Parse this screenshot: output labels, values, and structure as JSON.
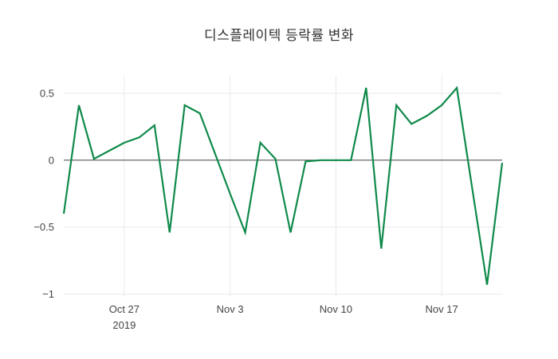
{
  "title": "디스플레이텍 등락률 변화",
  "chart_data": {
    "type": "line",
    "title": "디스플레이텍 등락률 변화",
    "xlabel": "",
    "ylabel": "",
    "grid": true,
    "legend": "none",
    "ylim": [
      -1.02,
      0.63
    ],
    "dates": [
      "2019-10-23",
      "2019-10-24",
      "2019-10-25",
      "2019-10-26",
      "2019-10-27",
      "2019-10-28",
      "2019-10-29",
      "2019-10-30",
      "2019-10-31",
      "2019-11-01",
      "2019-11-02",
      "2019-11-03",
      "2019-11-04",
      "2019-11-05",
      "2019-11-06",
      "2019-11-07",
      "2019-11-08",
      "2019-11-09",
      "2019-11-10",
      "2019-11-11",
      "2019-11-12",
      "2019-11-13",
      "2019-11-14",
      "2019-11-15",
      "2019-11-16",
      "2019-11-17",
      "2019-11-18",
      "2019-11-19",
      "2019-11-20",
      "2019-11-21"
    ],
    "values": [
      -0.4,
      0.41,
      0.01,
      0.07,
      0.13,
      0.17,
      0.26,
      -0.54,
      0.41,
      0.35,
      0.05,
      -0.25,
      -0.54,
      0.13,
      0.01,
      -0.54,
      -0.01,
      0.0,
      0.0,
      0.0,
      0.54,
      -0.66,
      0.41,
      0.27,
      0.33,
      0.41,
      0.54,
      -0.2,
      -0.93,
      -0.02
    ],
    "x_ticks": [
      {
        "index": 4,
        "label": "Oct 27",
        "sublabel": "2019"
      },
      {
        "index": 11,
        "label": "Nov 3",
        "sublabel": ""
      },
      {
        "index": 18,
        "label": "Nov 10",
        "sublabel": ""
      },
      {
        "index": 25,
        "label": "Nov 17",
        "sublabel": ""
      }
    ],
    "y_ticks": [
      {
        "value": 0.5,
        "label": "0.5"
      },
      {
        "value": 0,
        "label": "0"
      },
      {
        "value": -0.5,
        "label": "−0.5"
      },
      {
        "value": -1,
        "label": "−1"
      }
    ],
    "colors": {
      "line": "#0f8a4a",
      "grid": "#e9e9e9",
      "zero_line": "#444444",
      "tick_label": "#444444",
      "title": "#333333"
    }
  }
}
